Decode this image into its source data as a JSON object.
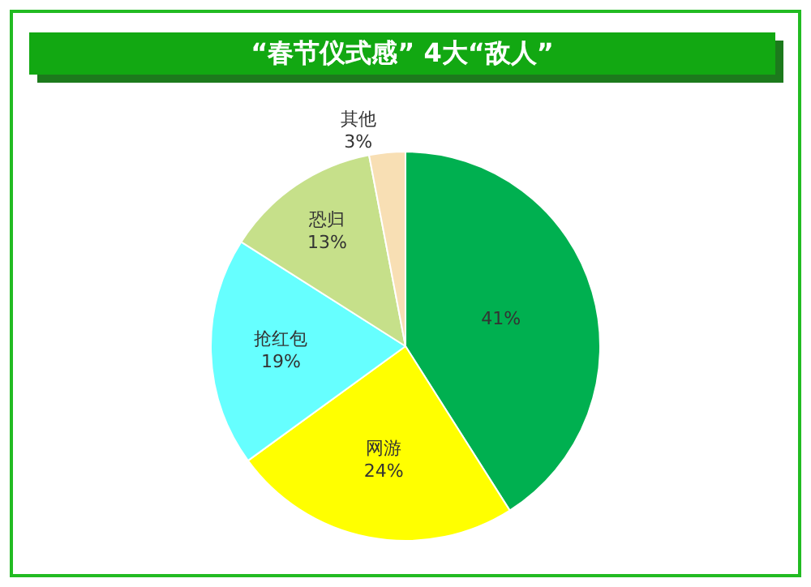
{
  "chart_data": {
    "type": "pie",
    "title": "“春节仪式感” 4大“敌人”",
    "categories": [
      null,
      "网游",
      "抢红包",
      "恐归",
      "其他"
    ],
    "values": [
      41,
      24,
      19,
      13,
      3
    ],
    "value_labels": [
      "41%",
      "24%",
      "19%",
      "13%",
      "3%"
    ],
    "colors": [
      "#00b050",
      "#ffff00",
      "#66ffff",
      "#c6e08a",
      "#f8dfb4"
    ],
    "legend": false
  }
}
